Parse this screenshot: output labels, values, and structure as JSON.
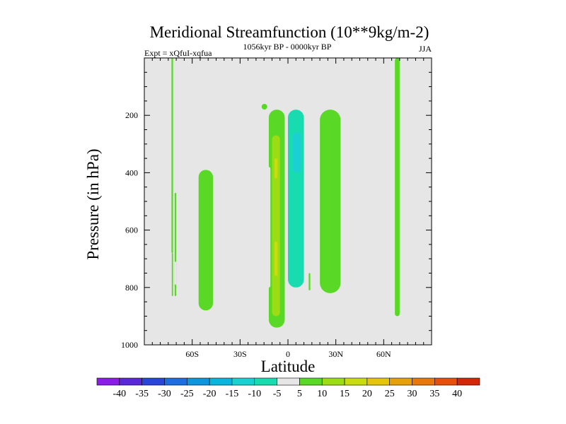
{
  "chart_data": {
    "type": "heatmap",
    "title": "Meridional Streamfunction (10**9kg/m-2)",
    "subtitle": "1056kyr BP - 0000kyr BP",
    "left_label": "Expt = xQfuI-xqfua",
    "right_label": "JJA",
    "xlabel": "Latitude",
    "ylabel": "Pressure (in hPa)",
    "x_range": [
      -90,
      90
    ],
    "y_range": [
      0,
      1000
    ],
    "x_ticks": [
      {
        "value": -60,
        "label": "60S"
      },
      {
        "value": -30,
        "label": "30S"
      },
      {
        "value": 0,
        "label": "0"
      },
      {
        "value": 30,
        "label": "30N"
      },
      {
        "value": 60,
        "label": "60N"
      }
    ],
    "y_ticks": [
      {
        "value": 200,
        "label": "200"
      },
      {
        "value": 400,
        "label": "400"
      },
      {
        "value": 600,
        "label": "600"
      },
      {
        "value": 800,
        "label": "800"
      },
      {
        "value": 1000,
        "label": "1000"
      }
    ],
    "colorbar": {
      "levels": [
        -40,
        -35,
        -30,
        -25,
        -20,
        -15,
        -10,
        -5,
        5,
        10,
        15,
        20,
        25,
        30,
        35,
        40
      ],
      "labels": [
        "-40",
        "-35",
        "-30",
        "-25",
        "-20",
        "-15",
        "-10",
        "-5",
        "5",
        "10",
        "15",
        "20",
        "25",
        "30",
        "35",
        "40"
      ],
      "colors": [
        "#8a1ee6",
        "#5a28d6",
        "#2a46d8",
        "#1e6ee0",
        "#0e96dc",
        "#0ab4dc",
        "#1ad0d0",
        "#18dcb0",
        "#e6e6e6",
        "#5ad826",
        "#9cdc14",
        "#c8dc10",
        "#e6c40c",
        "#e6a00c",
        "#e6780c",
        "#e6500c",
        "#d22808"
      ]
    },
    "background_color": "#e6e6e6",
    "cells": [
      {
        "feature": "polar band 72S",
        "lat": [
          -73,
          -72
        ],
        "p": [
          0,
          680
        ],
        "value": 5
      },
      {
        "feature": "polar band 72S lower",
        "lat": [
          -72.8,
          -72
        ],
        "p": [
          680,
          830
        ],
        "value": 5
      },
      {
        "feature": "cell 70S",
        "lat": [
          -71,
          -70
        ],
        "p": [
          470,
          830
        ],
        "value": 5
      },
      {
        "feature": "cell 70S core",
        "lat": [
          -71,
          -70
        ],
        "p": [
          710,
          790
        ],
        "value": -5
      },
      {
        "feature": "cell 55S",
        "lat": [
          -56,
          -47
        ],
        "p": [
          390,
          880
        ],
        "value": 5
      },
      {
        "feature": "cell 30S",
        "lat": [
          -33,
          -26
        ],
        "p": [
          560,
          900
        ],
        "value": -5
      },
      {
        "feature": "cell 15S small",
        "lat": [
          -16.5,
          -13
        ],
        "p": [
          160,
          180
        ],
        "value": 5
      },
      {
        "feature": "cell 8S",
        "lat": [
          -12,
          -2
        ],
        "p": [
          180,
          940
        ],
        "value": 5
      },
      {
        "feature": "cell 8S core",
        "lat": [
          -10,
          -5
        ],
        "p": [
          270,
          900
        ],
        "value": 10
      },
      {
        "feature": "cell 8S center",
        "lat": [
          -8.5,
          -6.5
        ],
        "p": [
          350,
          420
        ],
        "value": 15
      },
      {
        "feature": "cell 8S lower",
        "lat": [
          -8.5,
          -6.5
        ],
        "p": [
          640,
          760
        ],
        "value": 15
      },
      {
        "feature": "cell 10S edge",
        "lat": [
          -13,
          -11
        ],
        "p": [
          380,
          800
        ],
        "value": -5
      },
      {
        "feature": "cell 5N",
        "lat": [
          -2,
          12
        ],
        "p": [
          140,
          950
        ],
        "value": -5
      },
      {
        "feature": "cell 5N core",
        "lat": [
          0,
          10
        ],
        "p": [
          180,
          800
        ],
        "value": -10
      },
      {
        "feature": "cell 5N center",
        "lat": [
          3,
          8
        ],
        "p": [
          260,
          400
        ],
        "value": -15
      },
      {
        "feature": "cell 13N thin",
        "lat": [
          13,
          14
        ],
        "p": [
          750,
          810
        ],
        "value": 5
      },
      {
        "feature": "cell 25N",
        "lat": [
          20,
          33
        ],
        "p": [
          180,
          820
        ],
        "value": 5
      },
      {
        "feature": "polar band 68N",
        "lat": [
          67,
          70
        ],
        "p": [
          0,
          900
        ],
        "value": 5
      }
    ]
  }
}
